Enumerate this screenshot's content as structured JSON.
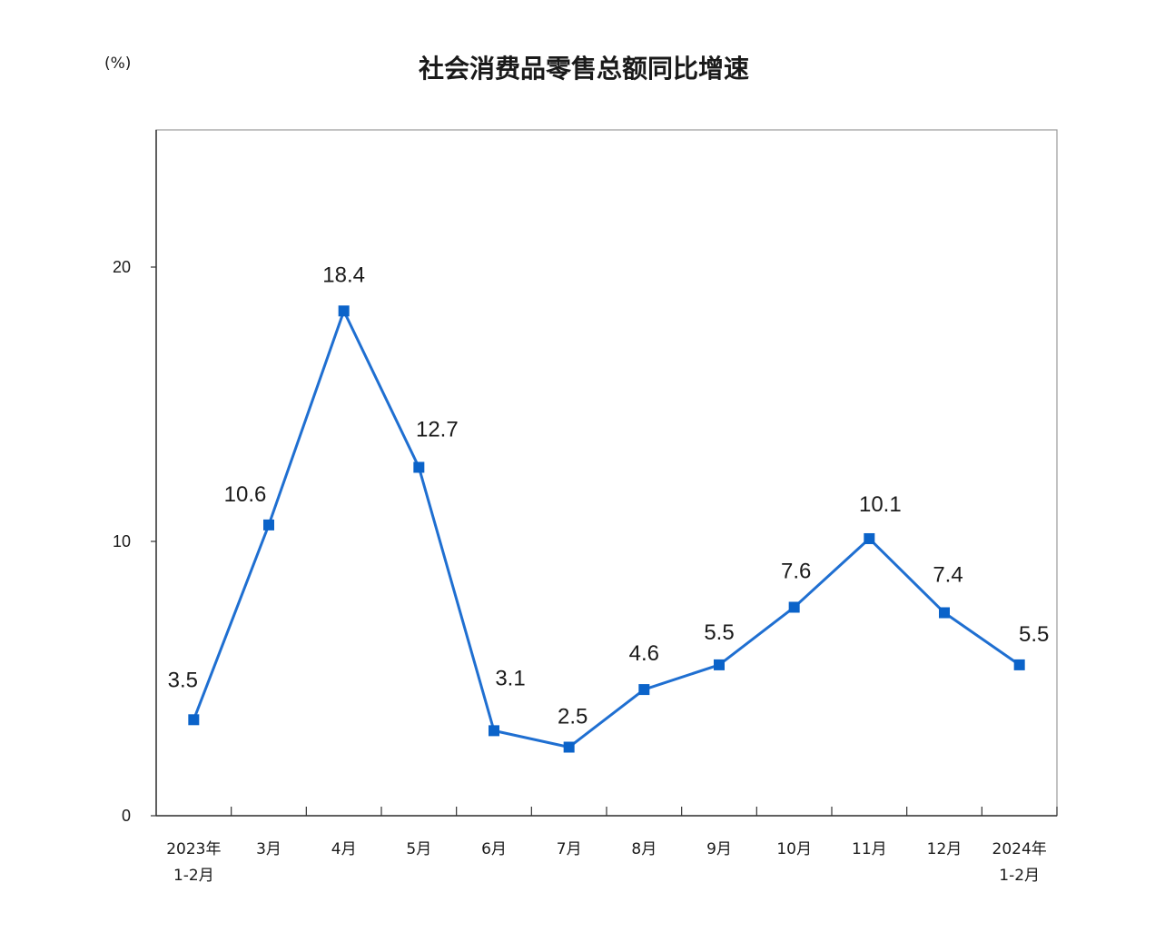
{
  "chart_data": {
    "type": "line",
    "title": "社会消费品零售总额同比增速",
    "unit_label": "(%)",
    "categories": [
      {
        "line1": "2023年",
        "line2": "1-2月"
      },
      {
        "line1": "3月",
        "line2": ""
      },
      {
        "line1": "4月",
        "line2": ""
      },
      {
        "line1": "5月",
        "line2": ""
      },
      {
        "line1": "6月",
        "line2": ""
      },
      {
        "line1": "7月",
        "line2": ""
      },
      {
        "line1": "8月",
        "line2": ""
      },
      {
        "line1": "9月",
        "line2": ""
      },
      {
        "line1": "10月",
        "line2": ""
      },
      {
        "line1": "11月",
        "line2": ""
      },
      {
        "line1": "12月",
        "line2": ""
      },
      {
        "line1": "2024年",
        "line2": "1-2月"
      }
    ],
    "series": [
      {
        "values": [
          3.5,
          10.6,
          18.4,
          12.7,
          3.1,
          2.5,
          4.6,
          5.5,
          7.6,
          10.1,
          7.4,
          5.5
        ],
        "labels": [
          "3.5",
          "10.6",
          "18.4",
          "12.7",
          "3.1",
          "2.5",
          "4.6",
          "5.5",
          "7.6",
          "10.1",
          "7.4",
          "5.5"
        ]
      }
    ],
    "ylim": [
      0,
      25
    ],
    "yticks": [
      {
        "value": 0,
        "label": "0"
      },
      {
        "value": 10,
        "label": "10"
      },
      {
        "value": 20,
        "label": "20"
      }
    ],
    "grid": false,
    "colors": {
      "line": "#1f6fd1",
      "marker": "#0b63c9",
      "frame": "#9a9a9a",
      "axis": "#333333"
    }
  }
}
